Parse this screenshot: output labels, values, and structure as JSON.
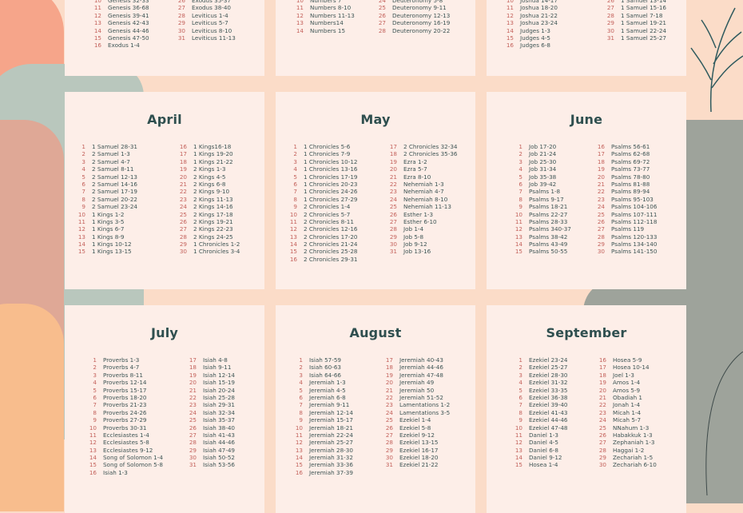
{
  "colors": {
    "background": "#fbdcc8",
    "card": "#fdeee8",
    "title": "#2f4f4f",
    "day_number": "#c4625c",
    "reading": "#3e5555",
    "accent_sage": "#b9c7bd",
    "accent_salmon": "#f6a58a",
    "accent_gray": "#9ea39b"
  },
  "months": [
    {
      "title": "",
      "left": [
        [
          "10",
          "Genesis 32-33"
        ],
        [
          "11",
          "Genesis 36-68"
        ],
        [
          "12",
          "Genesis 39-41"
        ],
        [
          "13",
          "Genesis 42-43"
        ],
        [
          "14",
          "Genesis 44-46"
        ],
        [
          "15",
          "Genesis 47-50"
        ],
        [
          "16",
          "Exodus 1-4"
        ]
      ],
      "right": [
        [
          "26",
          "Exodus 35-37"
        ],
        [
          "27",
          "Exodus 38-40"
        ],
        [
          "28",
          "Leviticus 1-4"
        ],
        [
          "29",
          "Leviticus 5-7"
        ],
        [
          "30",
          "Leviticus 8-10"
        ],
        [
          "31",
          "Leviticus 11-13"
        ]
      ]
    },
    {
      "title": "",
      "left": [
        [
          "10",
          "Numbers 7"
        ],
        [
          "11",
          "Numbers 8-10"
        ],
        [
          "12",
          "Numbers 11-13"
        ],
        [
          "13",
          "Numbers14"
        ],
        [
          "14",
          "Numbers 15"
        ]
      ],
      "right": [
        [
          "24",
          "Deuteronomy 5-8"
        ],
        [
          "25",
          "Deuteronomy 9-11"
        ],
        [
          "26",
          "Deuteronomy 12-13"
        ],
        [
          "27",
          "Deuteronomy 16-19"
        ],
        [
          "28",
          "Deuteronomy 20-22"
        ]
      ]
    },
    {
      "title": "",
      "left": [
        [
          "10",
          "Joshua 14-17"
        ],
        [
          "11",
          "Joshua 18-20"
        ],
        [
          "12",
          "Joshua 21-22"
        ],
        [
          "13",
          "Joshua 23-24"
        ],
        [
          "14",
          "Judges 1-3"
        ],
        [
          "15",
          "Judges 4-5"
        ],
        [
          "16",
          "Judges 6-8"
        ]
      ],
      "right": [
        [
          "26",
          "1 Samuel 13-14"
        ],
        [
          "27",
          "1 Samuel 15-16"
        ],
        [
          "28",
          "1 Samuel 7-18"
        ],
        [
          "29",
          "1 Samuel 19-21"
        ],
        [
          "30",
          "1 Samuel 22-24"
        ],
        [
          "31",
          "1 Samuel 25-27"
        ]
      ]
    },
    {
      "title": "April",
      "left": [
        [
          "1",
          "1 Samuel 28-31"
        ],
        [
          "2",
          "2 Samuel 1-3"
        ],
        [
          "3",
          "2 Samuel  4-7"
        ],
        [
          "4",
          "2 Samuel  8-11"
        ],
        [
          "5",
          "2 Samuel 12-13"
        ],
        [
          "6",
          "2 Samuel  14-16"
        ],
        [
          "7",
          "2 Samuel  17-19"
        ],
        [
          "8",
          "2 Samuel  20-22"
        ],
        [
          "9",
          "2 Samuel  23-24"
        ],
        [
          "10",
          "1 Kings 1-2"
        ],
        [
          "11",
          "1 Kings 3-5"
        ],
        [
          "12",
          "1 Kings 6-7"
        ],
        [
          "13",
          "1 Kings 8-9"
        ],
        [
          "14",
          "1 Kings 10-12"
        ],
        [
          "15",
          "1 Kings 13-15"
        ]
      ],
      "right": [
        [
          "16",
          "1 Kings16-18"
        ],
        [
          "17",
          "1 Kings 19-20"
        ],
        [
          "18",
          "1 Kings 21-22"
        ],
        [
          "19",
          "2 Kings 1-3"
        ],
        [
          "20",
          "2 Kings 4-5"
        ],
        [
          "21",
          "2 Kings 6-8"
        ],
        [
          "22",
          "2 Kings 9-10"
        ],
        [
          "23",
          "2 Kings 11-13"
        ],
        [
          "24",
          "2 Kings 14-16"
        ],
        [
          "25",
          "2 Kings 17-18"
        ],
        [
          "26",
          "2 Kings 19-21"
        ],
        [
          "27",
          "2 Kings 22-23"
        ],
        [
          "28",
          "2 Kings 24-25"
        ],
        [
          "29",
          "1 Chronicles 1-2"
        ],
        [
          "30",
          "1 Chronicles 3-4"
        ]
      ]
    },
    {
      "title": "May",
      "left": [
        [
          "1",
          "1 Chronicles 5-6"
        ],
        [
          "2",
          "1 Chronicles 7-9"
        ],
        [
          "3",
          "1 Chronicles 10-12"
        ],
        [
          "4",
          "1 Chronicles 13-16"
        ],
        [
          "5",
          "1 Chronicles 17-19"
        ],
        [
          "6",
          "1 Chronicles 20-23"
        ],
        [
          "7",
          "1 Chronicles 24-26"
        ],
        [
          "8",
          "1 Chronicles 27-29"
        ],
        [
          "9",
          "2 Chronicles 1-4"
        ],
        [
          "10",
          "2 Chronicles 5-7"
        ],
        [
          "11",
          "2 Chronicles 8-11"
        ],
        [
          "12",
          "2 Chronicles 12-16"
        ],
        [
          "13",
          "2 Chronicles 17-20"
        ],
        [
          "14",
          "2 Chronicles 21-24"
        ],
        [
          "15",
          "2 Chronicles 25-28"
        ],
        [
          "16",
          "2 Chronicles 29-31"
        ]
      ],
      "right": [
        [
          "17",
          "2 Chronicles 32-34"
        ],
        [
          "18",
          "2 Chronicles 35-36"
        ],
        [
          "19",
          "Ezra 1-2"
        ],
        [
          "20",
          "Ezra 5-7"
        ],
        [
          "21",
          "Ezra 8-10"
        ],
        [
          "22",
          "Nehemiah 1-3"
        ],
        [
          "23",
          "Nehemiah 4-7"
        ],
        [
          "24",
          "Nehemiah 8-10"
        ],
        [
          "25",
          "Nehemiah 11-13"
        ],
        [
          "26",
          "Esther 1-3"
        ],
        [
          "27",
          "Esther 6-10"
        ],
        [
          "28",
          "Job 1-4"
        ],
        [
          "29",
          "Job 5-8"
        ],
        [
          "30",
          "Job 9-12"
        ],
        [
          "31",
          "Job 13-16"
        ]
      ]
    },
    {
      "title": "June",
      "left": [
        [
          "1",
          "Job 17-20"
        ],
        [
          "2",
          "Job  21-24"
        ],
        [
          "3",
          "Job  25-30"
        ],
        [
          "4",
          "Job  31-34"
        ],
        [
          "5",
          "Job  35-38"
        ],
        [
          "6",
          "Job  39-42"
        ],
        [
          "7",
          "Psalms 1-8"
        ],
        [
          "8",
          "Psalms 9-17"
        ],
        [
          "9",
          "Psalms 18-21"
        ],
        [
          "10",
          "Psalms 22-27"
        ],
        [
          "11",
          "Psalms 28-33"
        ],
        [
          "12",
          "Psalms 340-37"
        ],
        [
          "13",
          "Psalms 38-42"
        ],
        [
          "14",
          "Psalms 43-49"
        ],
        [
          "15",
          "Psalms 50-55"
        ]
      ],
      "right": [
        [
          "16",
          "Psalms 56-61"
        ],
        [
          "17",
          "Psalms 62-68"
        ],
        [
          "18",
          "Psalms 69-72"
        ],
        [
          "19",
          "Psalms 73-77"
        ],
        [
          "20",
          "Psalms 78-80"
        ],
        [
          "21",
          "Psalms 81-88"
        ],
        [
          "22",
          "Psalms 89-94"
        ],
        [
          "23",
          "Psalms 95-103"
        ],
        [
          "24",
          "Psalms 104-106"
        ],
        [
          "25",
          "Psalms 107-111"
        ],
        [
          "26",
          "Psalms 112-118"
        ],
        [
          "27",
          "Psalms 119"
        ],
        [
          "28",
          "Psalms 120-133"
        ],
        [
          "29",
          "Psalms 134-140"
        ],
        [
          "30",
          "Psalms 141-150"
        ]
      ]
    },
    {
      "title": "July",
      "left": [
        [
          "1",
          "Proverbs 1-3"
        ],
        [
          "2",
          "Proverbs 4-7"
        ],
        [
          "3",
          "Proverbs 8-11"
        ],
        [
          "4",
          "Proverbs 12-14"
        ],
        [
          "5",
          "Proverbs 15-17"
        ],
        [
          "6",
          "Proverbs 18-20"
        ],
        [
          "7",
          "Proverbs 21-23"
        ],
        [
          "8",
          "Proverbs 24-26"
        ],
        [
          "9",
          "Proverbs 27-29"
        ],
        [
          "10",
          "Proverbs 30-31"
        ],
        [
          "11",
          "Ecclesiastes 1-4"
        ],
        [
          "12",
          "Ecclesiastes 5-8"
        ],
        [
          "13",
          "Ecclesiastes 9-12"
        ],
        [
          "14",
          "Song of Solomon 1-4"
        ],
        [
          "15",
          "Song of Solomon  5-8"
        ],
        [
          "16",
          "Isiah 1-3"
        ]
      ],
      "right": [
        [
          "17",
          "Isiah 4-8"
        ],
        [
          "18",
          "Isiah 9-11"
        ],
        [
          "19",
          "Isiah 12-14"
        ],
        [
          "20",
          "Isiah 15-19"
        ],
        [
          "21",
          "Isiah 20-24"
        ],
        [
          "22",
          "Isiah 25-28"
        ],
        [
          "23",
          "Isiah 29-31"
        ],
        [
          "24",
          "Isiah 32-34"
        ],
        [
          "25",
          "Isiah 35-37"
        ],
        [
          "26",
          "Isiah 38-40"
        ],
        [
          "27",
          "Isiah 41-43"
        ],
        [
          "28",
          "Isiah 44-46"
        ],
        [
          "29",
          "Isiah 47-49"
        ],
        [
          "30",
          "Isiah 50-52"
        ],
        [
          "31",
          "Isiah 53-56"
        ]
      ]
    },
    {
      "title": "August",
      "left": [
        [
          "1",
          "Isiah 57-59"
        ],
        [
          "2",
          "Isiah 60-63"
        ],
        [
          "3",
          "Isiah 64-66"
        ],
        [
          "4",
          "Jeremiah 1-3"
        ],
        [
          "5",
          "Jeremiah 4-5"
        ],
        [
          "6",
          "Jeremiah 6-8"
        ],
        [
          "7",
          "Jeremiah 9-11"
        ],
        [
          "8",
          "Jeremiah 12-14"
        ],
        [
          "9",
          "Jeremiah 15-17"
        ],
        [
          "10",
          "Jeremiah 18-21"
        ],
        [
          "11",
          "Jeremiah 22-24"
        ],
        [
          "12",
          "Jeremiah 25-27"
        ],
        [
          "13",
          "Jeremiah 28-30"
        ],
        [
          "14",
          "Jeremiah 31-32"
        ],
        [
          "15",
          "Jeremiah 33-36"
        ],
        [
          "16",
          "Jeremiah 37-39"
        ]
      ],
      "right": [
        [
          "17",
          "Jeremiah 40-43"
        ],
        [
          "18",
          "Jeremiah 44-46"
        ],
        [
          "19",
          "Jeremiah 47-48"
        ],
        [
          "20",
          "Jeremiah 49"
        ],
        [
          "21",
          "Jeremiah 50"
        ],
        [
          "22",
          "Jeremiah 51-52"
        ],
        [
          "23",
          "Lamentations 1-2"
        ],
        [
          "24",
          "Lamentations 3-5"
        ],
        [
          "25",
          "Ezekiel 1-4"
        ],
        [
          "26",
          "Ezekiel 5-8"
        ],
        [
          "27",
          "Ezekiel 9-12"
        ],
        [
          "28",
          "Ezekiel 13-15"
        ],
        [
          "29",
          "Ezekiel 16-17"
        ],
        [
          "30",
          "Ezekiel 18-20"
        ],
        [
          "31",
          "Ezekiel 21-22"
        ]
      ]
    },
    {
      "title": "September",
      "left": [
        [
          "1",
          "Ezekiel 23-24"
        ],
        [
          "2",
          "Ezekiel 25-27"
        ],
        [
          "3",
          "Ezekiel 28-30"
        ],
        [
          "4",
          "Ezekiel 31-32"
        ],
        [
          "5",
          "Ezekiel 33-35"
        ],
        [
          "6",
          "Ezekiel 36-38"
        ],
        [
          "7",
          "Ezekiel 39-40"
        ],
        [
          "8",
          "Ezekiel 41-43"
        ],
        [
          "9",
          "Ezekiel 44-46"
        ],
        [
          "10",
          "Ezekiel 47-48"
        ],
        [
          "11",
          "Daniel 1-3"
        ],
        [
          "12",
          "Daniel 4-5"
        ],
        [
          "13",
          "Daniel 6-8"
        ],
        [
          "14",
          "Daniel 9-12"
        ],
        [
          "15",
          "Hosea 1-4"
        ]
      ],
      "right": [
        [
          "16",
          "Hosea  5-9"
        ],
        [
          "17",
          "Hosea  10-14"
        ],
        [
          "18",
          "Joel 1-3"
        ],
        [
          "19",
          "Amos 1-4"
        ],
        [
          "20",
          "Amos 5-9"
        ],
        [
          "21",
          "Obadiah 1"
        ],
        [
          "22",
          "Jonah 1-4"
        ],
        [
          "23",
          "Micah 1-4"
        ],
        [
          "24",
          "Micah 5-7"
        ],
        [
          "25",
          "NNahum 1-3"
        ],
        [
          "26",
          "Habakkuk 1-3"
        ],
        [
          "27",
          "Zephaniah 1-3"
        ],
        [
          "28",
          "Haggai 1-2"
        ],
        [
          "29",
          "Zechariah 1-5"
        ],
        [
          "30",
          "Zechariah 6-10"
        ]
      ]
    }
  ]
}
